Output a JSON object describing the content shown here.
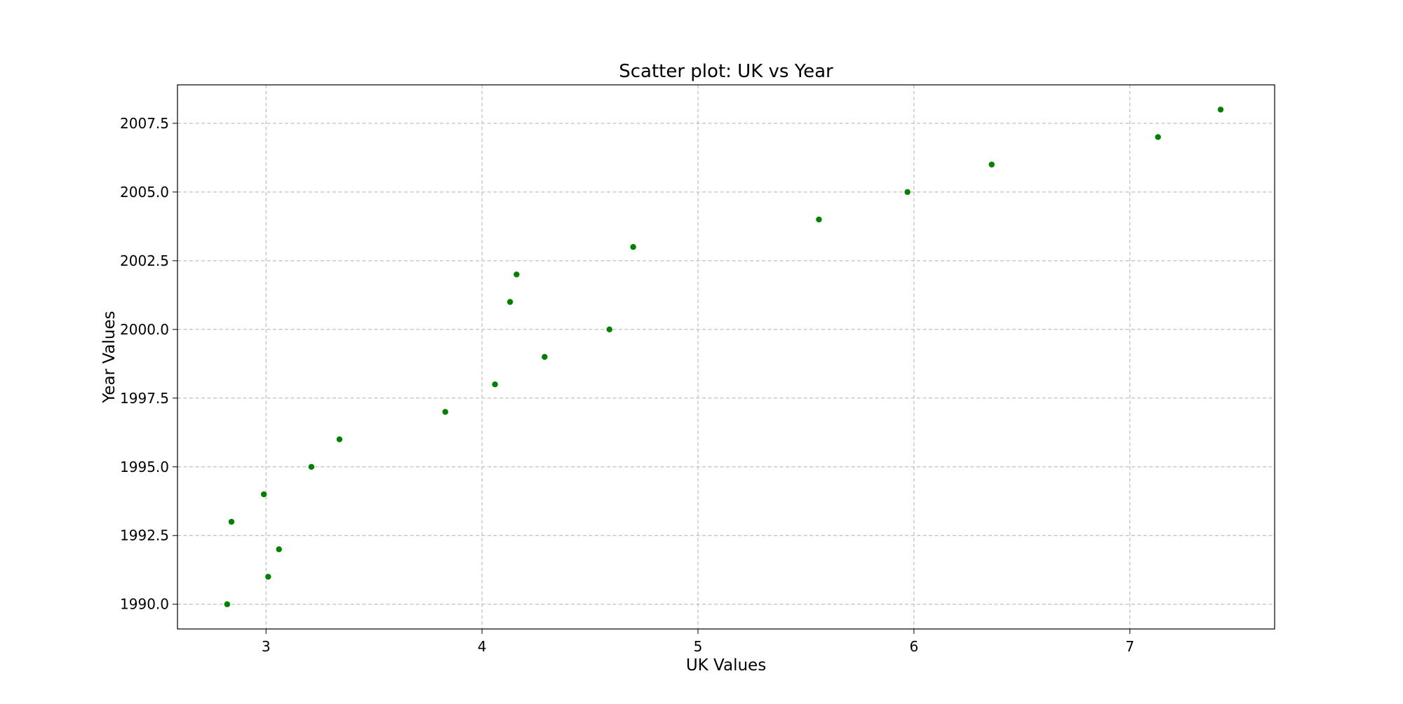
{
  "chart_data": {
    "type": "scatter",
    "title": "Scatter plot: UK vs Year",
    "xlabel": "UK Values",
    "ylabel": "Year Values",
    "xlim": [
      2.59,
      7.67
    ],
    "ylim": [
      1989.1,
      2008.9
    ],
    "x_ticks": [
      3,
      4,
      5,
      6,
      7
    ],
    "x_tick_labels": [
      "3",
      "4",
      "5",
      "6",
      "7"
    ],
    "y_ticks": [
      1990.0,
      1992.5,
      1995.0,
      1997.5,
      2000.0,
      2002.5,
      2005.0,
      2007.5
    ],
    "y_tick_labels": [
      "1990.0",
      "1992.5",
      "1995.0",
      "1997.5",
      "2000.0",
      "2002.5",
      "2005.0",
      "2007.5"
    ],
    "grid": true,
    "marker_color": "#008000",
    "series": [
      {
        "x": [
          2.82,
          3.01,
          3.06,
          2.84,
          2.99,
          3.21,
          3.34,
          3.83,
          4.06,
          4.29,
          4.59,
          4.13,
          4.16,
          4.7,
          5.56,
          5.97,
          6.36,
          7.13,
          7.42
        ],
        "y": [
          1990,
          1991,
          1992,
          1993,
          1994,
          1995,
          1996,
          1997,
          1998,
          1999,
          2000,
          2001,
          2002,
          2003,
          2004,
          2005,
          2006,
          2007,
          2008
        ]
      }
    ]
  }
}
